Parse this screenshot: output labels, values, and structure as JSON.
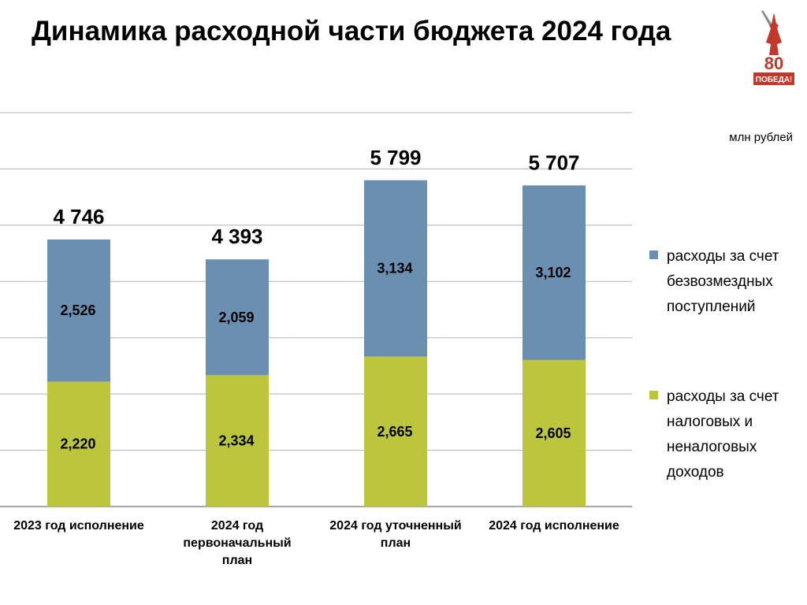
{
  "title": "Динамика расходной части бюджета 2024 года",
  "unit": "млн рублей",
  "emblem": {
    "number": "80",
    "text": "ПОБЕДА!"
  },
  "colors": {
    "gridline": "#b3b3b3",
    "axis": "#8c8c8c"
  },
  "chart_data": {
    "type": "bar",
    "stacked": true,
    "categories": [
      "2023 год исполнение",
      "2024 год первоначальный план",
      "2024 год уточненный план",
      "2024 год исполнение"
    ],
    "series": [
      {
        "name": "расходы за счет налоговых и неналоговых доходов",
        "color": "#bcc63c",
        "values": [
          2220,
          2334,
          2665,
          2605
        ],
        "labels": [
          "2,220",
          "2,334",
          "2,665",
          "2,605"
        ]
      },
      {
        "name": "расходы за счет безвозмездных поступлений",
        "color": "#6b8fb0",
        "values": [
          2526,
          2059,
          3134,
          3102
        ],
        "labels": [
          "2,526",
          "2,059",
          "3,134",
          "3,102"
        ]
      }
    ],
    "totals": [
      "4 746",
      "4 393",
      "5 799",
      "5 707"
    ],
    "ylim": [
      0,
      7000
    ],
    "grid": true,
    "legend": "right"
  }
}
